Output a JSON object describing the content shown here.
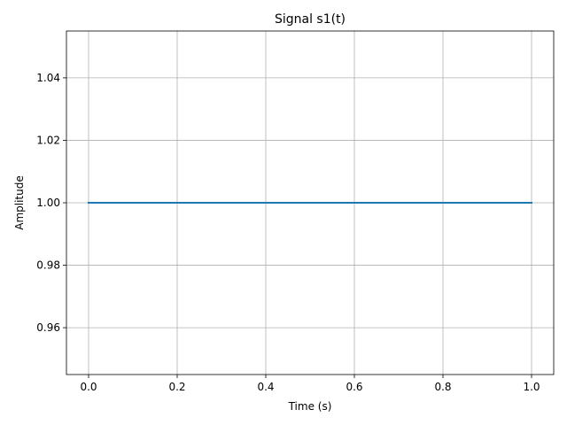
{
  "chart_data": {
    "type": "line",
    "title": "Signal s1(t)",
    "xlabel": "Time (s)",
    "ylabel": "Amplitude",
    "xlim": [
      -0.05,
      1.05
    ],
    "ylim": [
      0.945,
      1.055
    ],
    "xticks": [
      0.0,
      0.2,
      0.4,
      0.6,
      0.8,
      1.0
    ],
    "xtick_labels": [
      "0.0",
      "0.2",
      "0.4",
      "0.6",
      "0.8",
      "1.0"
    ],
    "yticks": [
      0.96,
      0.98,
      1.0,
      1.02,
      1.04
    ],
    "ytick_labels": [
      "0.96",
      "0.98",
      "1.00",
      "1.02",
      "1.04"
    ],
    "grid": true,
    "series": [
      {
        "color": "#1f77b4",
        "x": [
          0.0,
          0.25,
          0.5,
          0.75,
          1.0
        ],
        "y": [
          1.0,
          1.0,
          1.0,
          1.0,
          1.0
        ]
      }
    ]
  }
}
